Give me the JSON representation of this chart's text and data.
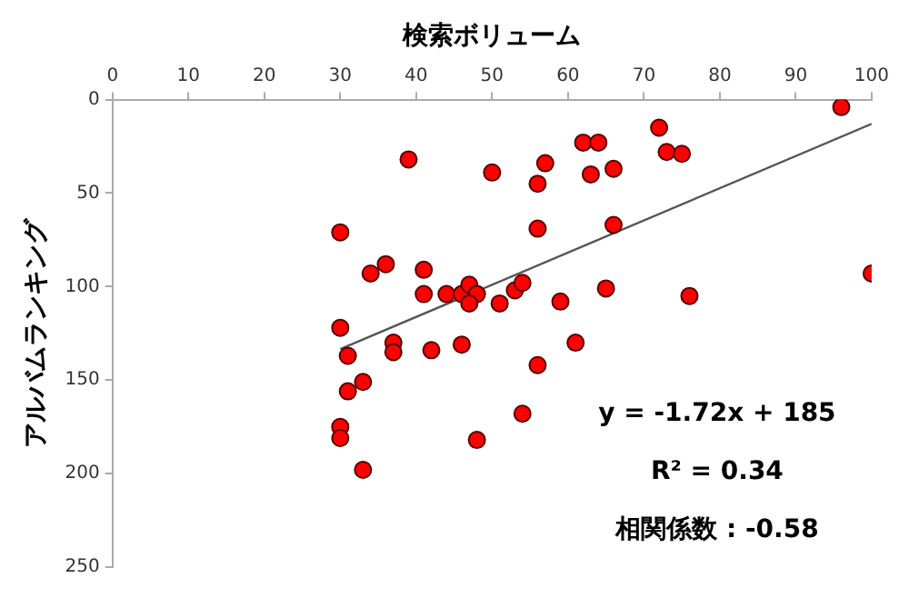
{
  "chart_data": {
    "type": "scatter",
    "xlabel": "検索ボリューム",
    "ylabel": "アルバムランキング",
    "xlim": [
      0,
      100
    ],
    "xticks": [
      0,
      10,
      20,
      30,
      40,
      50,
      60,
      70,
      80,
      90,
      100
    ],
    "ylim": [
      250,
      0
    ],
    "yticks": [
      0,
      50,
      100,
      150,
      200,
      250
    ],
    "grid": false,
    "legend": false,
    "marker": "circle",
    "series": [
      {
        "color": "#ff0000",
        "x": [
          39,
          30,
          62,
          64,
          50,
          57,
          56,
          63,
          56,
          36,
          34,
          41,
          41,
          44,
          46,
          47,
          48,
          47,
          51,
          53,
          54,
          59,
          30,
          31,
          37,
          37,
          42,
          46,
          61,
          56,
          33,
          31,
          54,
          30,
          30,
          48,
          33,
          96,
          72,
          73,
          75,
          66,
          66,
          100,
          65,
          76
        ],
        "values": [
          32,
          71,
          23,
          23,
          39,
          34,
          45,
          40,
          69,
          88,
          93,
          91,
          104,
          104,
          104,
          99,
          104,
          109,
          109,
          102,
          98,
          108,
          122,
          137,
          130,
          135,
          134,
          131,
          130,
          142,
          151,
          156,
          168,
          175,
          181,
          182,
          198,
          4,
          15,
          28,
          29,
          37,
          67,
          93,
          101,
          105
        ]
      },
      {
        "type": "line",
        "color": "#555555",
        "marker": "none",
        "x": [
          30,
          100
        ],
        "values": [
          133.4,
          13
        ]
      }
    ],
    "annotations": [
      {
        "text": "y = -1.72x + 185"
      },
      {
        "text": "R² = 0.34"
      },
      {
        "text": "相関係数 : -0.58"
      }
    ]
  }
}
